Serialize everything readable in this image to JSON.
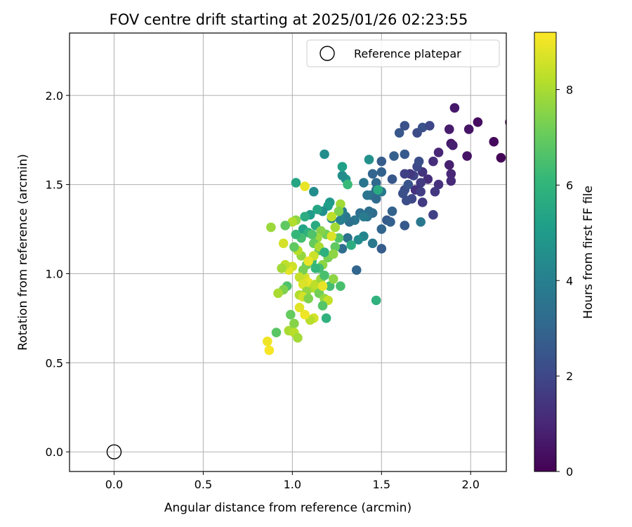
{
  "chart_data": {
    "type": "scatter",
    "title": "FOV centre drift starting at 2025/01/26 02:23:55",
    "xlabel": "Angular distance from reference (arcmin)",
    "ylabel": "Rotation from reference (arcmin)",
    "xlim": [
      -0.25,
      2.2
    ],
    "ylim": [
      -0.11,
      2.35
    ],
    "xticks": [
      "0.0",
      "0.5",
      "1.0",
      "1.5",
      "2.0"
    ],
    "xtick_values": [
      0.0,
      0.5,
      1.0,
      1.5,
      2.0
    ],
    "yticks": [
      "0.0",
      "0.5",
      "1.0",
      "1.5",
      "2.0"
    ],
    "ytick_values": [
      0.0,
      0.5,
      1.0,
      1.5,
      2.0
    ],
    "grid": true,
    "legend_position": "top-right",
    "reference": {
      "label": "Reference platepar",
      "x": 0.0,
      "y": 0.0
    },
    "colorbar": {
      "label": "Hours from first FF file",
      "range": [
        0,
        9.2
      ],
      "ticks": [
        "0",
        "2",
        "4",
        "6",
        "8"
      ],
      "tick_values": [
        0,
        2,
        4,
        6,
        8
      ],
      "colormap": [
        "#440154",
        "#482878",
        "#3e4989",
        "#31688e",
        "#26828e",
        "#1f9e89",
        "#35b779",
        "#6ece58",
        "#b5de2b",
        "#fde725"
      ]
    },
    "points": [
      [
        2.22,
        1.85,
        0.1
      ],
      [
        2.04,
        1.85,
        0.3
      ],
      [
        2.13,
        1.74,
        0.2
      ],
      [
        2.17,
        1.65,
        0.1
      ],
      [
        1.91,
        1.93,
        0.6
      ],
      [
        1.99,
        1.81,
        0.5
      ],
      [
        1.88,
        1.81,
        0.7
      ],
      [
        1.89,
        1.73,
        0.6
      ],
      [
        1.9,
        1.72,
        0.8
      ],
      [
        1.98,
        1.66,
        0.5
      ],
      [
        1.88,
        1.61,
        0.8
      ],
      [
        1.89,
        1.56,
        1.0
      ],
      [
        1.89,
        1.52,
        1.1
      ],
      [
        1.82,
        1.68,
        1.0
      ],
      [
        1.79,
        1.63,
        1.2
      ],
      [
        1.82,
        1.5,
        1.3
      ],
      [
        1.8,
        1.46,
        1.5
      ],
      [
        1.76,
        1.53,
        1.2
      ],
      [
        1.73,
        1.57,
        1.4
      ],
      [
        1.72,
        1.51,
        1.6
      ],
      [
        1.69,
        1.47,
        1.3
      ],
      [
        1.72,
        1.46,
        1.7
      ],
      [
        1.68,
        1.55,
        1.9
      ],
      [
        1.7,
        1.6,
        2.0
      ],
      [
        1.71,
        1.63,
        2.2
      ],
      [
        1.66,
        1.56,
        1.5
      ],
      [
        1.63,
        1.56,
        1.8
      ],
      [
        1.63,
        1.47,
        2.1
      ],
      [
        1.62,
        1.45,
        2.3
      ],
      [
        1.65,
        1.5,
        2.4
      ],
      [
        1.67,
        1.42,
        2.0
      ],
      [
        1.73,
        1.4,
        1.6
      ],
      [
        1.79,
        1.33,
        1.8
      ],
      [
        1.64,
        1.41,
        2.2
      ],
      [
        1.7,
        1.79,
        2.1
      ],
      [
        1.73,
        1.82,
        2.3
      ],
      [
        1.77,
        1.83,
        2.0
      ],
      [
        1.6,
        1.79,
        2.5
      ],
      [
        1.63,
        1.83,
        2.3
      ],
      [
        1.63,
        1.67,
        2.6
      ],
      [
        1.57,
        1.66,
        2.8
      ],
      [
        1.5,
        1.63,
        2.7
      ],
      [
        1.56,
        1.53,
        2.5
      ],
      [
        1.5,
        1.57,
        2.9
      ],
      [
        1.45,
        1.56,
        3.0
      ],
      [
        1.47,
        1.51,
        3.1
      ],
      [
        1.47,
        1.47,
        3.3
      ],
      [
        1.44,
        1.44,
        3.4
      ],
      [
        1.42,
        1.44,
        3.5
      ],
      [
        1.4,
        1.51,
        3.6
      ],
      [
        1.47,
        1.42,
        3.2
      ],
      [
        1.5,
        1.46,
        3.7
      ],
      [
        1.56,
        1.35,
        2.9
      ],
      [
        1.53,
        1.3,
        2.6
      ],
      [
        1.55,
        1.29,
        2.8
      ],
      [
        1.5,
        1.25,
        3.0
      ],
      [
        1.5,
        1.14,
        2.7
      ],
      [
        1.45,
        1.34,
        3.2
      ],
      [
        1.43,
        1.35,
        3.4
      ],
      [
        1.42,
        1.32,
        3.5
      ],
      [
        1.38,
        1.34,
        3.3
      ],
      [
        1.4,
        1.32,
        3.8
      ],
      [
        1.35,
        1.3,
        3.6
      ],
      [
        1.32,
        1.29,
        3.4
      ],
      [
        1.3,
        1.32,
        3.7
      ],
      [
        1.28,
        1.35,
        3.9
      ],
      [
        1.27,
        1.3,
        4.0
      ],
      [
        1.31,
        1.2,
        3.5
      ],
      [
        1.28,
        1.14,
        3.3
      ],
      [
        1.45,
        1.17,
        3.7
      ],
      [
        1.4,
        1.21,
        4.2
      ],
      [
        1.37,
        1.19,
        4.4
      ],
      [
        1.36,
        1.02,
        3.0
      ],
      [
        1.63,
        1.27,
        2.6
      ],
      [
        1.72,
        1.29,
        3.7
      ],
      [
        1.43,
        1.64,
        4.6
      ],
      [
        1.3,
        1.53,
        4.8
      ],
      [
        1.28,
        1.55,
        4.5
      ],
      [
        1.28,
        1.6,
        5.2
      ],
      [
        1.31,
        1.5,
        6.2
      ],
      [
        1.18,
        1.67,
        4.5
      ],
      [
        1.21,
        1.4,
        4.9
      ],
      [
        1.2,
        1.38,
        5.1
      ],
      [
        1.17,
        1.35,
        4.6
      ],
      [
        1.22,
        1.31,
        4.3
      ],
      [
        1.14,
        1.36,
        5.4
      ],
      [
        1.13,
        1.27,
        5.6
      ],
      [
        1.1,
        1.33,
        5.0
      ],
      [
        1.07,
        1.32,
        5.7
      ],
      [
        1.06,
        1.25,
        5.3
      ],
      [
        1.09,
        1.23,
        5.9
      ],
      [
        1.05,
        1.2,
        6.4
      ],
      [
        1.02,
        1.22,
        6.1
      ],
      [
        1.12,
        1.46,
        4.5
      ],
      [
        1.02,
        1.51,
        5.4
      ],
      [
        1.48,
        1.47,
        5.6
      ],
      [
        1.47,
        0.85,
        5.9
      ],
      [
        1.27,
        0.93,
        6.5
      ],
      [
        1.33,
        1.16,
        5.7
      ],
      [
        1.26,
        1.2,
        6.7
      ],
      [
        1.19,
        1.22,
        7.2
      ],
      [
        1.16,
        1.24,
        7.5
      ],
      [
        1.14,
        1.2,
        7.8
      ],
      [
        1.12,
        1.17,
        7.0
      ],
      [
        1.15,
        1.13,
        6.8
      ],
      [
        1.2,
        1.09,
        7.3
      ],
      [
        1.17,
        1.05,
        7.6
      ],
      [
        1.15,
        1.03,
        6.4
      ],
      [
        1.11,
        1.07,
        6.2
      ],
      [
        1.08,
        1.05,
        7.1
      ],
      [
        1.05,
        1.1,
        7.7
      ],
      [
        1.03,
        1.13,
        8.2
      ],
      [
        1.01,
        1.15,
        6.9
      ],
      [
        1.0,
        1.04,
        8.5
      ],
      [
        0.98,
        1.02,
        8.8
      ],
      [
        0.96,
        1.05,
        8.3
      ],
      [
        0.94,
        1.03,
        7.9
      ],
      [
        0.97,
        0.93,
        6.6
      ],
      [
        0.95,
        0.91,
        7.4
      ],
      [
        0.92,
        0.89,
        8.0
      ],
      [
        1.07,
        0.98,
        8.6
      ],
      [
        1.09,
        0.95,
        8.9
      ],
      [
        1.12,
        0.92,
        8.1
      ],
      [
        1.15,
        0.89,
        7.2
      ],
      [
        1.18,
        0.86,
        7.7
      ],
      [
        1.2,
        0.85,
        8.4
      ],
      [
        1.17,
        0.82,
        6.7
      ],
      [
        1.19,
        0.75,
        5.9
      ],
      [
        1.12,
        0.75,
        8.6
      ],
      [
        1.1,
        0.74,
        8.2
      ],
      [
        1.07,
        0.77,
        9.0
      ],
      [
        1.04,
        0.81,
        8.8
      ],
      [
        0.99,
        0.77,
        7.0
      ],
      [
        0.98,
        0.68,
        8.0
      ],
      [
        1.01,
        0.72,
        7.5
      ],
      [
        1.01,
        0.67,
        8.2
      ],
      [
        1.03,
        0.64,
        7.9
      ],
      [
        0.91,
        0.67,
        6.8
      ],
      [
        0.86,
        0.62,
        9.0
      ],
      [
        0.87,
        0.57,
        9.1
      ],
      [
        0.88,
        1.26,
        7.8
      ],
      [
        0.95,
        1.17,
        8.6
      ],
      [
        1.02,
        1.3,
        7.6
      ],
      [
        1.0,
        1.29,
        8.1
      ],
      [
        0.96,
        1.27,
        6.9
      ],
      [
        1.07,
        1.49,
        8.9
      ],
      [
        1.27,
        1.39,
        7.9
      ],
      [
        1.26,
        1.35,
        7.4
      ],
      [
        1.22,
        1.32,
        8.3
      ],
      [
        1.24,
        1.26,
        7.9
      ],
      [
        1.22,
        1.21,
        8.7
      ],
      [
        1.15,
        1.15,
        8.0
      ],
      [
        1.12,
        1.1,
        8.5
      ],
      [
        1.09,
        1.07,
        8.9
      ],
      [
        1.06,
        1.02,
        7.3
      ],
      [
        1.04,
        0.98,
        8.4
      ],
      [
        1.06,
        0.94,
        8.7
      ],
      [
        1.08,
        0.9,
        7.7
      ],
      [
        1.04,
        0.88,
        8.1
      ],
      [
        1.06,
        0.87,
        8.6
      ],
      [
        1.09,
        0.86,
        7.4
      ],
      [
        1.13,
        0.94,
        8.3
      ],
      [
        1.16,
        0.97,
        7.8
      ],
      [
        1.18,
        0.99,
        6.5
      ],
      [
        1.13,
        1.03,
        6.1
      ],
      [
        1.18,
        1.12,
        5.8
      ],
      [
        1.24,
        1.15,
        6.9
      ],
      [
        1.23,
        1.11,
        7.6
      ],
      [
        1.11,
        1.22,
        6.6
      ],
      [
        1.21,
        0.93,
        6.4
      ],
      [
        1.17,
        0.93,
        8.9
      ],
      [
        1.23,
        0.97,
        7.6
      ]
    ]
  }
}
